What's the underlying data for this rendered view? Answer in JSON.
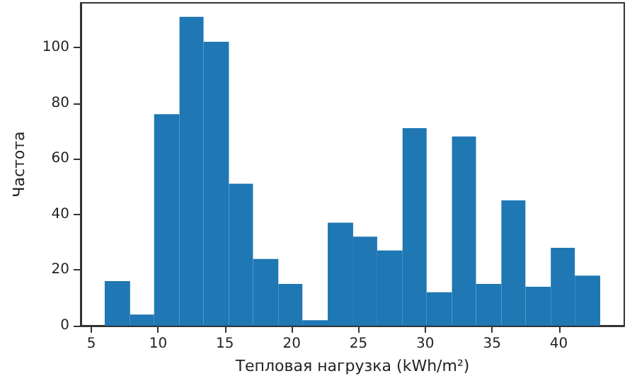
{
  "chart_data": {
    "type": "histogram",
    "xlabel": "Тепловая нагрузка (kWh/m²)",
    "ylabel": "Частота",
    "bins": [
      6.0,
      7.9,
      9.7,
      11.6,
      13.4,
      15.3,
      17.1,
      19.0,
      20.8,
      22.7,
      24.6,
      26.4,
      28.3,
      30.1,
      32.0,
      33.8,
      35.7,
      37.5,
      39.4,
      41.2,
      43.1
    ],
    "values": [
      16,
      4,
      76,
      111,
      102,
      51,
      24,
      15,
      2,
      37,
      32,
      27,
      71,
      12,
      68,
      15,
      45,
      14,
      28,
      18
    ],
    "color": "#1f77b4",
    "xlim": [
      4.2,
      44.9
    ],
    "xticks": [
      5,
      10,
      15,
      20,
      25,
      30,
      35,
      40
    ],
    "ylim": [
      0,
      116
    ],
    "yticks": [
      0,
      20,
      40,
      60,
      80,
      100
    ],
    "grid": false
  }
}
